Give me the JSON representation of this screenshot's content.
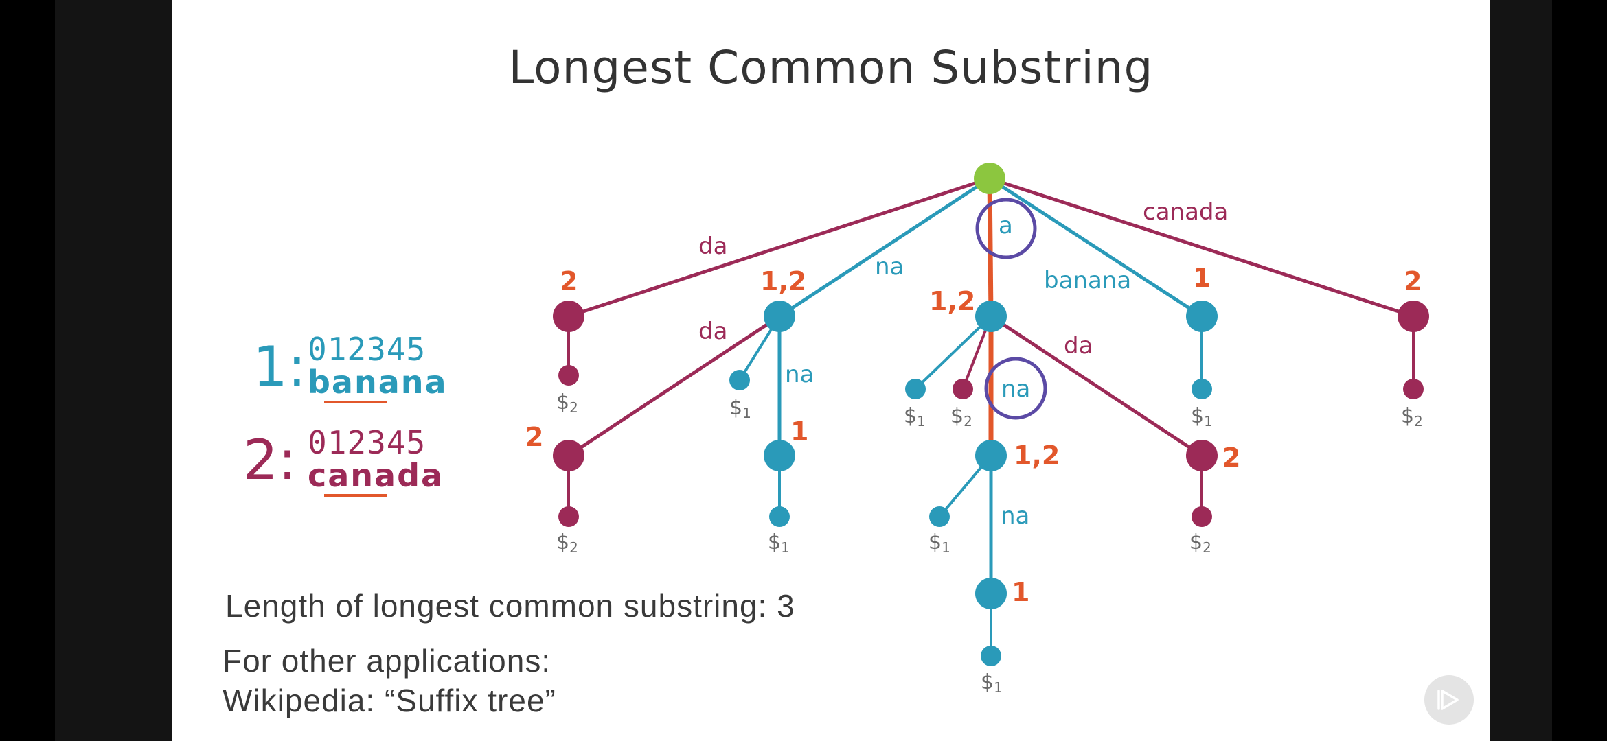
{
  "slide": {
    "title": "Longest Common Substring",
    "strings": [
      {
        "number": "1:",
        "indices": "012345",
        "word": "banana",
        "color": "#2a9ab9"
      },
      {
        "number": "2:",
        "indices": "012345",
        "word": "canada",
        "color": "#9c2a57"
      }
    ],
    "result_text": "Length of longest common substring: 3",
    "other_apps_line1": "For other applications:",
    "other_apps_line2": "Wikipedia: “Suffix tree”"
  },
  "colors": {
    "string1": "#2a9ab9",
    "string2": "#9c2a57",
    "highlight_path": "#e2572b",
    "root": "#8cc63f",
    "circle_annotation": "#5b4aa5"
  },
  "tree": {
    "edge_labels": {
      "e_root_da": "da",
      "e_root_na": "na",
      "e_root_a": "a",
      "e_root_banana": "banana",
      "e_root_canada": "canada",
      "e_na_da": "da",
      "e_na_na": "na",
      "e_a_da": "da",
      "e_a_na": "na",
      "e_ana_na": "na"
    },
    "set_labels": {
      "n_da": "2",
      "n_na": "1,2",
      "n_a": "1,2",
      "n_banana": "1",
      "n_canada": "2",
      "n_nada": "2",
      "n_nana": "1",
      "n_ana": "1,2",
      "n_ada": "2",
      "n_anana": "1"
    },
    "terminators": {
      "t_da": {
        "sym": "$",
        "sub": "2"
      },
      "t_na": {
        "sym": "$",
        "sub": "1"
      },
      "t_a1": {
        "sym": "$",
        "sub": "1"
      },
      "t_a2": {
        "sym": "$",
        "sub": "2"
      },
      "t_banana": {
        "sym": "$",
        "sub": "1"
      },
      "t_canada": {
        "sym": "$",
        "sub": "2"
      },
      "t_nada": {
        "sym": "$",
        "sub": "2"
      },
      "t_nana": {
        "sym": "$",
        "sub": "1"
      },
      "t_ana": {
        "sym": "$",
        "sub": "1"
      },
      "t_ada": {
        "sym": "$",
        "sub": "2"
      },
      "t_anana": {
        "sym": "$",
        "sub": "1"
      }
    }
  }
}
